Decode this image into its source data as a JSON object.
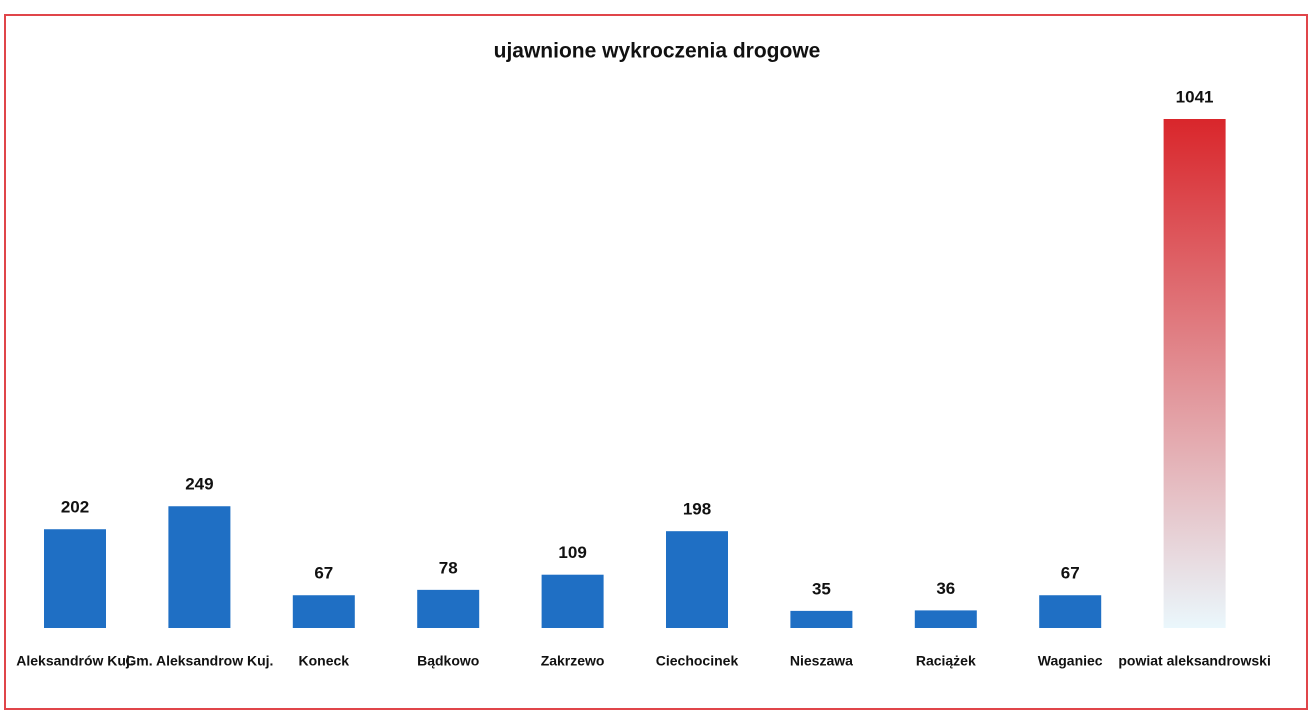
{
  "chart_data": {
    "type": "bar",
    "title": "ujawnione wykroczenia drogowe",
    "categories": [
      "Aleksandrów Kuj.",
      "Gm. Aleksandrow Kuj.",
      "Koneck",
      "Bądkowo",
      "Zakrzewo",
      "Ciechocinek",
      "Nieszawa",
      "Raciążek",
      "Waganiec",
      "powiat aleksandrowski"
    ],
    "values": [
      202,
      249,
      67,
      78,
      109,
      198,
      35,
      36,
      67,
      1041
    ],
    "colors": [
      "#1f6fc4",
      "#1f6fc4",
      "#1f6fc4",
      "#1f6fc4",
      "#1f6fc4",
      "#1f6fc4",
      "#1f6fc4",
      "#1f6fc4",
      "#1f6fc4",
      [
        "#d9262b",
        "#eaf7fc"
      ]
    ]
  }
}
